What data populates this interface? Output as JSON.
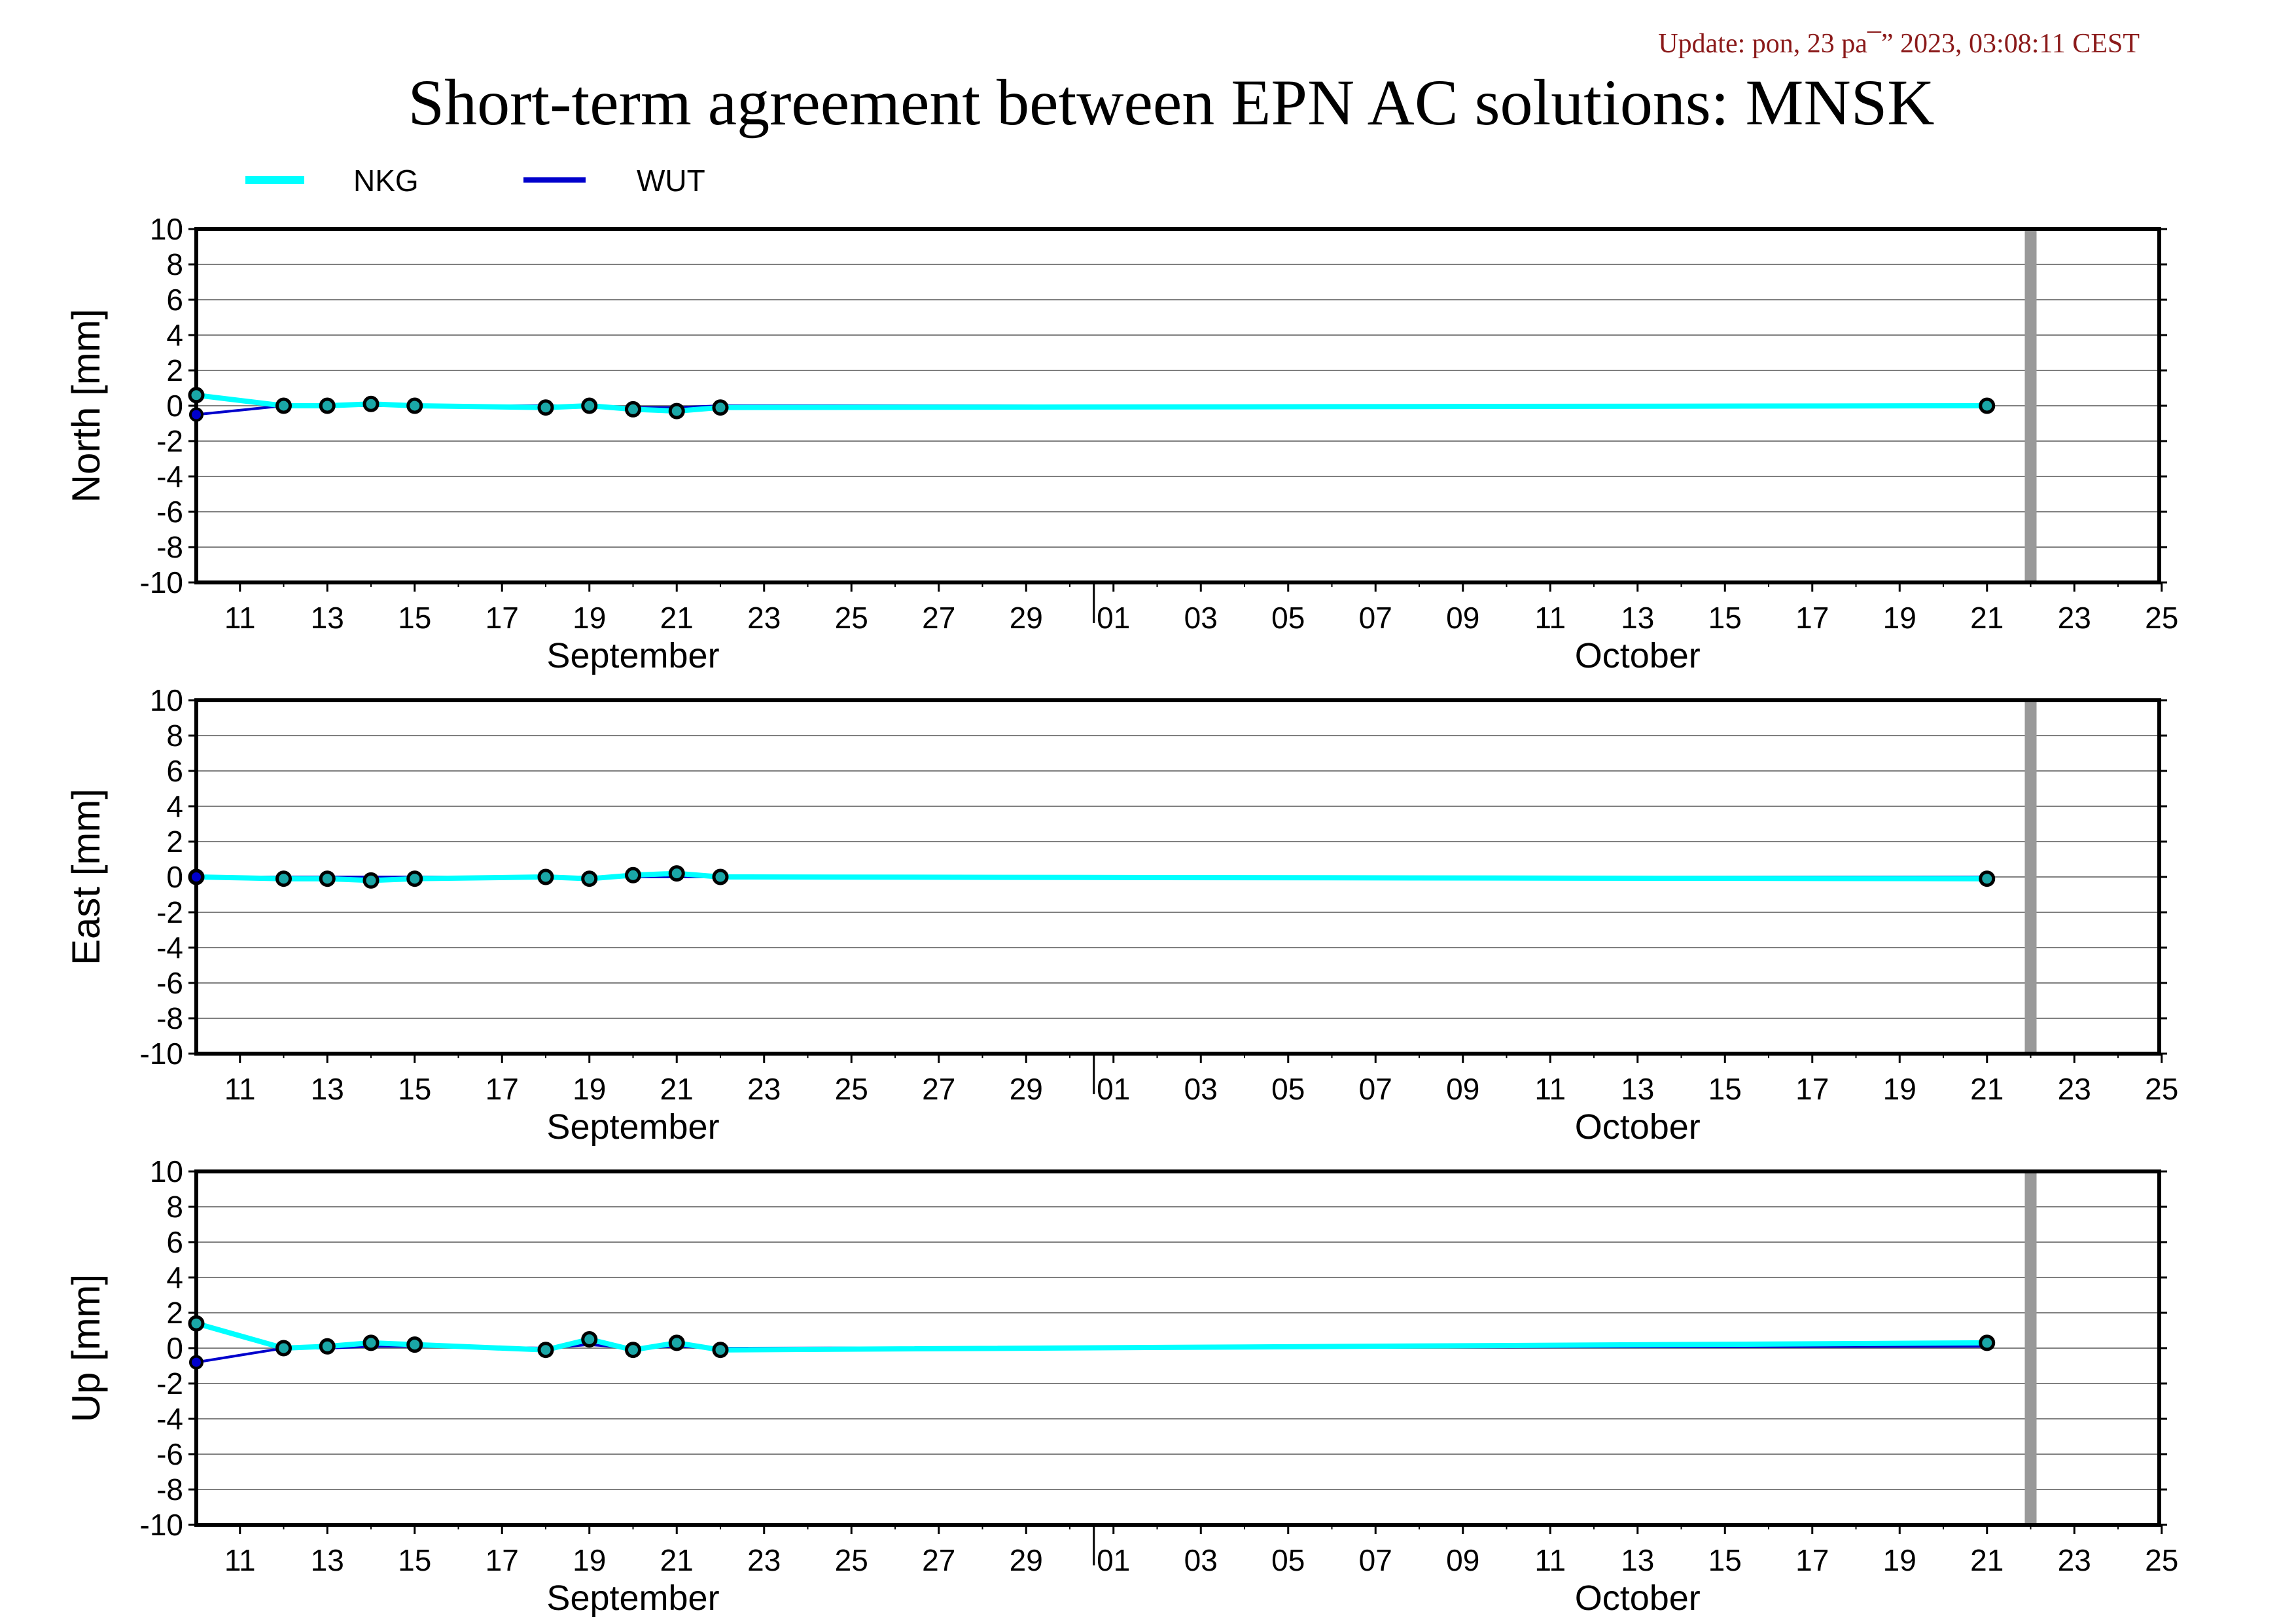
{
  "header": {
    "update_text": "Update: pon, 23 pa¯” 2023, 03:08:11 CEST",
    "title": "Short-term agreement between EPN AC solutions: MNSK"
  },
  "legend": [
    {
      "name": "NKG",
      "color": "#00ffff"
    },
    {
      "name": "WUT",
      "color": "#0000cc"
    }
  ],
  "colors": {
    "today_marker": "#999999",
    "grid": "#808080",
    "point_fill": "#1aa7a7",
    "point_stroke": "#000000"
  },
  "chart_data": [
    {
      "type": "line",
      "ylabel": "North [mm]",
      "ylim": [
        -10,
        10
      ],
      "yticks": [
        10,
        8,
        6,
        4,
        2,
        0,
        -2,
        -4,
        -6,
        -8,
        -10
      ],
      "grid": true,
      "x_unit": "date",
      "xlim": [
        "2023-09-10",
        "2023-10-25"
      ],
      "x_tick_labels": [
        "11",
        "13",
        "15",
        "17",
        "19",
        "21",
        "23",
        "25",
        "27",
        "29",
        "01",
        "03",
        "05",
        "07",
        "09",
        "11",
        "13",
        "15",
        "17",
        "19",
        "21",
        "23",
        "25"
      ],
      "months": [
        "September",
        "October"
      ],
      "today_marker": "2023-10-22",
      "series": [
        {
          "name": "NKG",
          "x": [
            "2023-09-10",
            "2023-09-12",
            "2023-09-13",
            "2023-09-14",
            "2023-09-15",
            "2023-09-18",
            "2023-09-19",
            "2023-09-20",
            "2023-09-21",
            "2023-09-22",
            "2023-10-21"
          ],
          "y": [
            0.6,
            0.0,
            0.0,
            0.1,
            0.0,
            -0.1,
            0.0,
            -0.2,
            -0.3,
            -0.1,
            0.0
          ]
        },
        {
          "name": "WUT",
          "x": [
            "2023-09-10",
            "2023-09-12",
            "2023-09-13",
            "2023-09-14",
            "2023-09-15",
            "2023-09-18",
            "2023-09-19",
            "2023-09-20",
            "2023-09-21",
            "2023-09-22",
            "2023-10-21"
          ],
          "y": [
            -0.5,
            0.0,
            0.0,
            0.0,
            0.0,
            0.0,
            0.0,
            -0.1,
            -0.1,
            0.0,
            0.0
          ]
        }
      ]
    },
    {
      "type": "line",
      "ylabel": "East [mm]",
      "ylim": [
        -10,
        10
      ],
      "yticks": [
        10,
        8,
        6,
        4,
        2,
        0,
        -2,
        -4,
        -6,
        -8,
        -10
      ],
      "grid": true,
      "x_unit": "date",
      "xlim": [
        "2023-09-10",
        "2023-10-25"
      ],
      "x_tick_labels": [
        "11",
        "13",
        "15",
        "17",
        "19",
        "21",
        "23",
        "25",
        "27",
        "29",
        "01",
        "03",
        "05",
        "07",
        "09",
        "11",
        "13",
        "15",
        "17",
        "19",
        "21",
        "23",
        "25"
      ],
      "months": [
        "September",
        "October"
      ],
      "today_marker": "2023-10-22",
      "series": [
        {
          "name": "NKG",
          "x": [
            "2023-09-10",
            "2023-09-12",
            "2023-09-13",
            "2023-09-14",
            "2023-09-15",
            "2023-09-18",
            "2023-09-19",
            "2023-09-20",
            "2023-09-21",
            "2023-09-22",
            "2023-10-21"
          ],
          "y": [
            0.0,
            -0.1,
            -0.1,
            -0.2,
            -0.1,
            0.0,
            -0.1,
            0.1,
            0.2,
            0.0,
            -0.1
          ]
        },
        {
          "name": "WUT",
          "x": [
            "2023-09-10",
            "2023-09-12",
            "2023-09-13",
            "2023-09-14",
            "2023-09-15",
            "2023-09-18",
            "2023-09-19",
            "2023-09-20",
            "2023-09-21",
            "2023-09-22",
            "2023-10-21"
          ],
          "y": [
            0.0,
            0.0,
            0.0,
            0.0,
            0.0,
            0.0,
            0.0,
            0.0,
            0.0,
            0.0,
            0.0
          ]
        }
      ]
    },
    {
      "type": "line",
      "ylabel": "Up [mm]",
      "ylim": [
        -10,
        10
      ],
      "yticks": [
        10,
        8,
        6,
        4,
        2,
        0,
        -2,
        -4,
        -6,
        -8,
        -10
      ],
      "grid": true,
      "x_unit": "date",
      "xlim": [
        "2023-09-10",
        "2023-10-25"
      ],
      "x_tick_labels": [
        "11",
        "13",
        "15",
        "17",
        "19",
        "21",
        "23",
        "25",
        "27",
        "29",
        "01",
        "03",
        "05",
        "07",
        "09",
        "11",
        "13",
        "15",
        "17",
        "19",
        "21",
        "23",
        "25"
      ],
      "months": [
        "September",
        "October"
      ],
      "today_marker": "2023-10-22",
      "series": [
        {
          "name": "NKG",
          "x": [
            "2023-09-10",
            "2023-09-12",
            "2023-09-13",
            "2023-09-14",
            "2023-09-15",
            "2023-09-18",
            "2023-09-19",
            "2023-09-20",
            "2023-09-21",
            "2023-09-22",
            "2023-10-21"
          ],
          "y": [
            1.4,
            0.0,
            0.1,
            0.3,
            0.2,
            -0.1,
            0.5,
            -0.1,
            0.3,
            -0.1,
            0.3
          ]
        },
        {
          "name": "WUT",
          "x": [
            "2023-09-10",
            "2023-09-12",
            "2023-09-13",
            "2023-09-14",
            "2023-09-15",
            "2023-09-18",
            "2023-09-19",
            "2023-09-20",
            "2023-09-21",
            "2023-09-22",
            "2023-10-21"
          ],
          "y": [
            -0.8,
            0.0,
            0.0,
            0.1,
            0.1,
            0.0,
            0.2,
            0.0,
            0.1,
            0.0,
            0.1
          ]
        }
      ]
    }
  ]
}
